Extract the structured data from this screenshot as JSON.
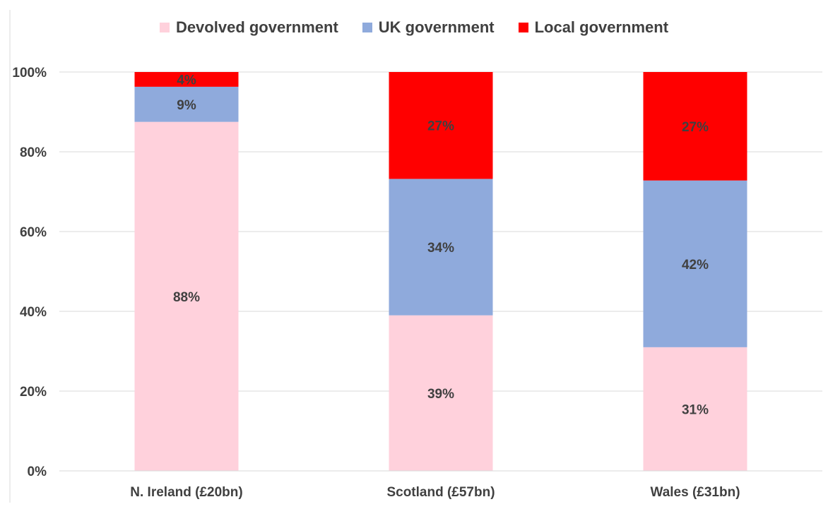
{
  "chart_data": {
    "type": "bar",
    "stacked": true,
    "percent_stacked": true,
    "title": "",
    "xlabel": "",
    "ylabel": "",
    "ylim": [
      0,
      100
    ],
    "y_ticks": [
      "0%",
      "20%",
      "40%",
      "60%",
      "80%",
      "100%"
    ],
    "grid": true,
    "legend_position": "top",
    "categories": [
      "N. Ireland (£20bn)",
      "Scotland (£57bn)",
      "Wales (£31bn)"
    ],
    "series": [
      {
        "name": "Devolved government",
        "color": "#FFD1DC",
        "values": [
          87.5,
          39,
          31
        ],
        "labels": [
          "88%",
          "39%",
          "31%"
        ]
      },
      {
        "name": "UK government",
        "color": "#8FAADC",
        "values": [
          8.8,
          34.2,
          41.8
        ],
        "labels": [
          "9%",
          "34%",
          "42%"
        ]
      },
      {
        "name": "Local government",
        "color": "#FF0000",
        "values": [
          3.7,
          26.8,
          27.2
        ],
        "labels": [
          "4%",
          "27%",
          "27%"
        ]
      }
    ]
  }
}
